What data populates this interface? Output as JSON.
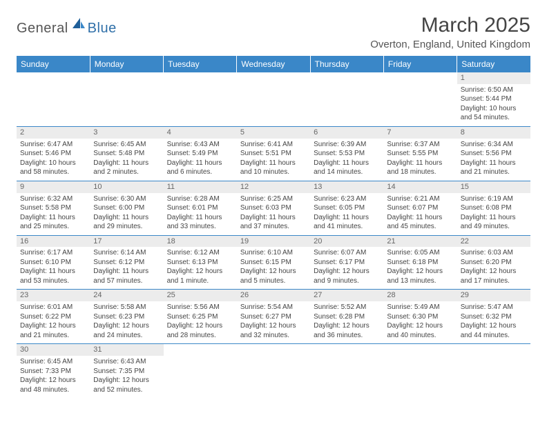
{
  "brand": {
    "part1": "General",
    "part2": "Blue"
  },
  "title": "March 2025",
  "location": "Overton, England, United Kingdom",
  "colors": {
    "header_bg": "#3a87c8",
    "header_text": "#ffffff",
    "border": "#3a87c8",
    "daynum_bg": "#ececec",
    "text": "#444444"
  },
  "day_headers": [
    "Sunday",
    "Monday",
    "Tuesday",
    "Wednesday",
    "Thursday",
    "Friday",
    "Saturday"
  ],
  "weeks": [
    [
      null,
      null,
      null,
      null,
      null,
      null,
      {
        "n": "1",
        "sr": "Sunrise: 6:50 AM",
        "ss": "Sunset: 5:44 PM",
        "dl": "Daylight: 10 hours and 54 minutes."
      }
    ],
    [
      {
        "n": "2",
        "sr": "Sunrise: 6:47 AM",
        "ss": "Sunset: 5:46 PM",
        "dl": "Daylight: 10 hours and 58 minutes."
      },
      {
        "n": "3",
        "sr": "Sunrise: 6:45 AM",
        "ss": "Sunset: 5:48 PM",
        "dl": "Daylight: 11 hours and 2 minutes."
      },
      {
        "n": "4",
        "sr": "Sunrise: 6:43 AM",
        "ss": "Sunset: 5:49 PM",
        "dl": "Daylight: 11 hours and 6 minutes."
      },
      {
        "n": "5",
        "sr": "Sunrise: 6:41 AM",
        "ss": "Sunset: 5:51 PM",
        "dl": "Daylight: 11 hours and 10 minutes."
      },
      {
        "n": "6",
        "sr": "Sunrise: 6:39 AM",
        "ss": "Sunset: 5:53 PM",
        "dl": "Daylight: 11 hours and 14 minutes."
      },
      {
        "n": "7",
        "sr": "Sunrise: 6:37 AM",
        "ss": "Sunset: 5:55 PM",
        "dl": "Daylight: 11 hours and 18 minutes."
      },
      {
        "n": "8",
        "sr": "Sunrise: 6:34 AM",
        "ss": "Sunset: 5:56 PM",
        "dl": "Daylight: 11 hours and 21 minutes."
      }
    ],
    [
      {
        "n": "9",
        "sr": "Sunrise: 6:32 AM",
        "ss": "Sunset: 5:58 PM",
        "dl": "Daylight: 11 hours and 25 minutes."
      },
      {
        "n": "10",
        "sr": "Sunrise: 6:30 AM",
        "ss": "Sunset: 6:00 PM",
        "dl": "Daylight: 11 hours and 29 minutes."
      },
      {
        "n": "11",
        "sr": "Sunrise: 6:28 AM",
        "ss": "Sunset: 6:01 PM",
        "dl": "Daylight: 11 hours and 33 minutes."
      },
      {
        "n": "12",
        "sr": "Sunrise: 6:25 AM",
        "ss": "Sunset: 6:03 PM",
        "dl": "Daylight: 11 hours and 37 minutes."
      },
      {
        "n": "13",
        "sr": "Sunrise: 6:23 AM",
        "ss": "Sunset: 6:05 PM",
        "dl": "Daylight: 11 hours and 41 minutes."
      },
      {
        "n": "14",
        "sr": "Sunrise: 6:21 AM",
        "ss": "Sunset: 6:07 PM",
        "dl": "Daylight: 11 hours and 45 minutes."
      },
      {
        "n": "15",
        "sr": "Sunrise: 6:19 AM",
        "ss": "Sunset: 6:08 PM",
        "dl": "Daylight: 11 hours and 49 minutes."
      }
    ],
    [
      {
        "n": "16",
        "sr": "Sunrise: 6:17 AM",
        "ss": "Sunset: 6:10 PM",
        "dl": "Daylight: 11 hours and 53 minutes."
      },
      {
        "n": "17",
        "sr": "Sunrise: 6:14 AM",
        "ss": "Sunset: 6:12 PM",
        "dl": "Daylight: 11 hours and 57 minutes."
      },
      {
        "n": "18",
        "sr": "Sunrise: 6:12 AM",
        "ss": "Sunset: 6:13 PM",
        "dl": "Daylight: 12 hours and 1 minute."
      },
      {
        "n": "19",
        "sr": "Sunrise: 6:10 AM",
        "ss": "Sunset: 6:15 PM",
        "dl": "Daylight: 12 hours and 5 minutes."
      },
      {
        "n": "20",
        "sr": "Sunrise: 6:07 AM",
        "ss": "Sunset: 6:17 PM",
        "dl": "Daylight: 12 hours and 9 minutes."
      },
      {
        "n": "21",
        "sr": "Sunrise: 6:05 AM",
        "ss": "Sunset: 6:18 PM",
        "dl": "Daylight: 12 hours and 13 minutes."
      },
      {
        "n": "22",
        "sr": "Sunrise: 6:03 AM",
        "ss": "Sunset: 6:20 PM",
        "dl": "Daylight: 12 hours and 17 minutes."
      }
    ],
    [
      {
        "n": "23",
        "sr": "Sunrise: 6:01 AM",
        "ss": "Sunset: 6:22 PM",
        "dl": "Daylight: 12 hours and 21 minutes."
      },
      {
        "n": "24",
        "sr": "Sunrise: 5:58 AM",
        "ss": "Sunset: 6:23 PM",
        "dl": "Daylight: 12 hours and 24 minutes."
      },
      {
        "n": "25",
        "sr": "Sunrise: 5:56 AM",
        "ss": "Sunset: 6:25 PM",
        "dl": "Daylight: 12 hours and 28 minutes."
      },
      {
        "n": "26",
        "sr": "Sunrise: 5:54 AM",
        "ss": "Sunset: 6:27 PM",
        "dl": "Daylight: 12 hours and 32 minutes."
      },
      {
        "n": "27",
        "sr": "Sunrise: 5:52 AM",
        "ss": "Sunset: 6:28 PM",
        "dl": "Daylight: 12 hours and 36 minutes."
      },
      {
        "n": "28",
        "sr": "Sunrise: 5:49 AM",
        "ss": "Sunset: 6:30 PM",
        "dl": "Daylight: 12 hours and 40 minutes."
      },
      {
        "n": "29",
        "sr": "Sunrise: 5:47 AM",
        "ss": "Sunset: 6:32 PM",
        "dl": "Daylight: 12 hours and 44 minutes."
      }
    ],
    [
      {
        "n": "30",
        "sr": "Sunrise: 6:45 AM",
        "ss": "Sunset: 7:33 PM",
        "dl": "Daylight: 12 hours and 48 minutes."
      },
      {
        "n": "31",
        "sr": "Sunrise: 6:43 AM",
        "ss": "Sunset: 7:35 PM",
        "dl": "Daylight: 12 hours and 52 minutes."
      },
      null,
      null,
      null,
      null,
      null
    ]
  ]
}
